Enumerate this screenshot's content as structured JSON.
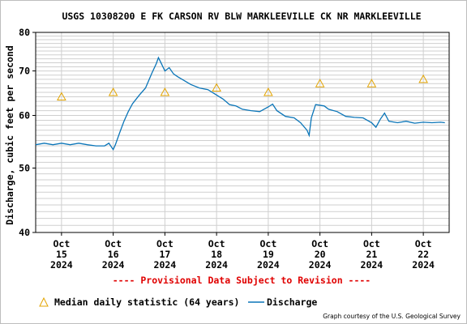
{
  "chart_data": {
    "type": "line",
    "title": "USGS 10308200 E FK CARSON RV BLW MARKLEEVILLE CK NR MARKLEEVILLE",
    "ylabel": "Discharge, cubic feet per second",
    "y_scale": "log",
    "ylim": [
      40,
      80
    ],
    "y_ticks": [
      "40",
      "50",
      "60",
      "70",
      "80"
    ],
    "xlim": [
      "2024-10-14 12:00",
      "2024-10-22 12:00"
    ],
    "x_ticks": [
      {
        "month": "Oct",
        "day": "15",
        "year": "2024",
        "date": "2024-10-15"
      },
      {
        "month": "Oct",
        "day": "16",
        "year": "2024",
        "date": "2024-10-16"
      },
      {
        "month": "Oct",
        "day": "17",
        "year": "2024",
        "date": "2024-10-17"
      },
      {
        "month": "Oct",
        "day": "18",
        "year": "2024",
        "date": "2024-10-18"
      },
      {
        "month": "Oct",
        "day": "19",
        "year": "2024",
        "date": "2024-10-19"
      },
      {
        "month": "Oct",
        "day": "20",
        "year": "2024",
        "date": "2024-10-20"
      },
      {
        "month": "Oct",
        "day": "21",
        "year": "2024",
        "date": "2024-10-21"
      },
      {
        "month": "Oct",
        "day": "22",
        "year": "2024",
        "date": "2024-10-22"
      }
    ],
    "grid": true,
    "provisional_note": "---- Provisional Data Subject to Revision ----",
    "series": [
      {
        "name": "Discharge",
        "kind": "line",
        "color": "#0a75b8",
        "points": [
          [
            "2024-10-14 12:00",
            54.2
          ],
          [
            "2024-10-14 16:00",
            54.5
          ],
          [
            "2024-10-14 20:00",
            54.2
          ],
          [
            "2024-10-15 00:00",
            54.5
          ],
          [
            "2024-10-15 04:00",
            54.2
          ],
          [
            "2024-10-15 08:00",
            54.5
          ],
          [
            "2024-10-15 12:00",
            54.2
          ],
          [
            "2024-10-15 16:00",
            54.0
          ],
          [
            "2024-10-15 20:00",
            54.0
          ],
          [
            "2024-10-15 22:00",
            54.5
          ],
          [
            "2024-10-16 00:00",
            53.3
          ],
          [
            "2024-10-16 01:00",
            54.2
          ],
          [
            "2024-10-16 03:00",
            56.5
          ],
          [
            "2024-10-16 05:00",
            58.8
          ],
          [
            "2024-10-16 07:00",
            60.8
          ],
          [
            "2024-10-16 09:00",
            62.5
          ],
          [
            "2024-10-16 12:00",
            64.3
          ],
          [
            "2024-10-16 15:00",
            66.0
          ],
          [
            "2024-10-16 18:00",
            69.5
          ],
          [
            "2024-10-16 20:00",
            71.8
          ],
          [
            "2024-10-16 21:00",
            73.3
          ],
          [
            "2024-10-16 22:00",
            72.2
          ],
          [
            "2024-10-17 00:00",
            70.0
          ],
          [
            "2024-10-17 02:00",
            70.8
          ],
          [
            "2024-10-17 04:00",
            69.3
          ],
          [
            "2024-10-17 06:00",
            68.6
          ],
          [
            "2024-10-17 08:00",
            68.0
          ],
          [
            "2024-10-17 12:00",
            66.8
          ],
          [
            "2024-10-17 16:00",
            66.0
          ],
          [
            "2024-10-17 20:00",
            65.6
          ],
          [
            "2024-10-18 00:00",
            64.4
          ],
          [
            "2024-10-18 03:00",
            63.5
          ],
          [
            "2024-10-18 06:00",
            62.3
          ],
          [
            "2024-10-18 09:00",
            62.0
          ],
          [
            "2024-10-18 12:00",
            61.3
          ],
          [
            "2024-10-18 16:00",
            61.0
          ],
          [
            "2024-10-18 20:00",
            60.8
          ],
          [
            "2024-10-19 00:00",
            61.8
          ],
          [
            "2024-10-19 02:00",
            62.4
          ],
          [
            "2024-10-19 04:00",
            61.0
          ],
          [
            "2024-10-19 08:00",
            59.8
          ],
          [
            "2024-10-19 12:00",
            59.5
          ],
          [
            "2024-10-19 15:00",
            58.5
          ],
          [
            "2024-10-19 18:00",
            57.0
          ],
          [
            "2024-10-19 19:00",
            56.0
          ],
          [
            "2024-10-19 20:00",
            59.5
          ],
          [
            "2024-10-19 22:00",
            62.3
          ],
          [
            "2024-10-20 02:00",
            62.0
          ],
          [
            "2024-10-20 04:00",
            61.3
          ],
          [
            "2024-10-20 08:00",
            60.8
          ],
          [
            "2024-10-20 12:00",
            59.8
          ],
          [
            "2024-10-20 16:00",
            59.6
          ],
          [
            "2024-10-20 20:00",
            59.5
          ],
          [
            "2024-10-21 00:00",
            58.5
          ],
          [
            "2024-10-21 02:00",
            57.6
          ],
          [
            "2024-10-21 04:00",
            59.2
          ],
          [
            "2024-10-21 06:00",
            60.5
          ],
          [
            "2024-10-21 08:00",
            58.8
          ],
          [
            "2024-10-21 12:00",
            58.5
          ],
          [
            "2024-10-21 16:00",
            58.8
          ],
          [
            "2024-10-21 20:00",
            58.4
          ],
          [
            "2024-10-22 00:00",
            58.6
          ],
          [
            "2024-10-22 04:00",
            58.5
          ],
          [
            "2024-10-22 08:00",
            58.6
          ],
          [
            "2024-10-22 10:00",
            58.5
          ]
        ]
      },
      {
        "name": "Median daily statistic (64 years)",
        "kind": "marker",
        "marker": "triangle",
        "color": "#e3a400",
        "points": [
          [
            "2024-10-15 00:00",
            64.0
          ],
          [
            "2024-10-16 00:00",
            65.0
          ],
          [
            "2024-10-17 00:00",
            65.0
          ],
          [
            "2024-10-18 00:00",
            66.0
          ],
          [
            "2024-10-19 00:00",
            65.0
          ],
          [
            "2024-10-20 00:00",
            67.0
          ],
          [
            "2024-10-21 00:00",
            67.0
          ],
          [
            "2024-10-22 00:00",
            68.0
          ]
        ]
      }
    ],
    "credit": "Graph courtesy of the U.S. Geological Survey"
  }
}
